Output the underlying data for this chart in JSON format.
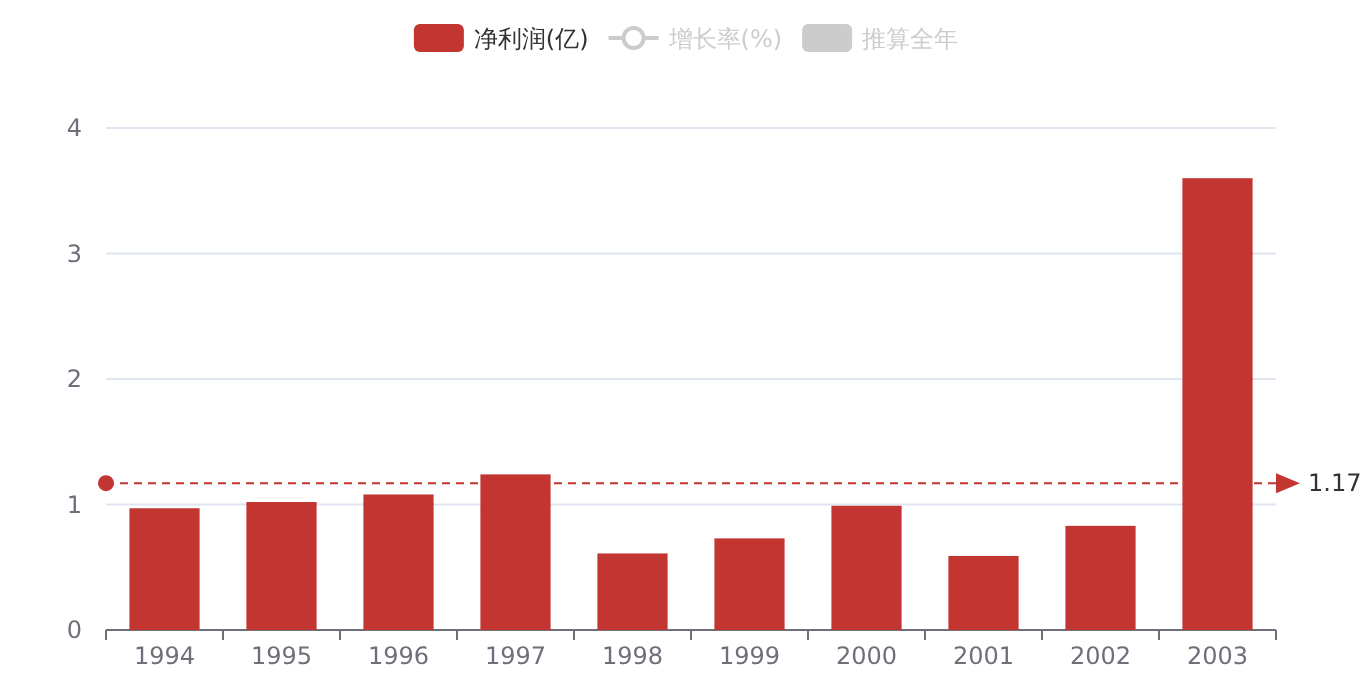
{
  "chart_data": {
    "type": "bar",
    "categories": [
      "1994",
      "1995",
      "1996",
      "1997",
      "1998",
      "1999",
      "2000",
      "2001",
      "2002",
      "2003"
    ],
    "series": [
      {
        "name": "净利润(亿)",
        "color": "#c23531",
        "values": [
          0.97,
          1.02,
          1.08,
          1.24,
          0.61,
          0.73,
          0.99,
          0.59,
          0.83,
          3.6
        ]
      },
      {
        "name": "增长率(%)",
        "type": "line",
        "marker": "circle",
        "color": "#cccccc",
        "values": [
          null,
          null,
          null,
          null,
          null,
          null,
          null,
          null,
          null,
          null
        ]
      },
      {
        "name": "推算全年",
        "color": "#cccccc",
        "values": [
          null,
          null,
          null,
          null,
          null,
          null,
          null,
          null,
          null,
          null
        ]
      }
    ],
    "ylim": [
      0,
      4
    ],
    "yticks": [
      0,
      1,
      2,
      3,
      4
    ],
    "grid": "y",
    "legend": "top",
    "ref_lines": [
      {
        "axis": "y",
        "value": 1.17,
        "label": "1.17",
        "color": "#c23531",
        "line_style": "dashed"
      }
    ]
  }
}
